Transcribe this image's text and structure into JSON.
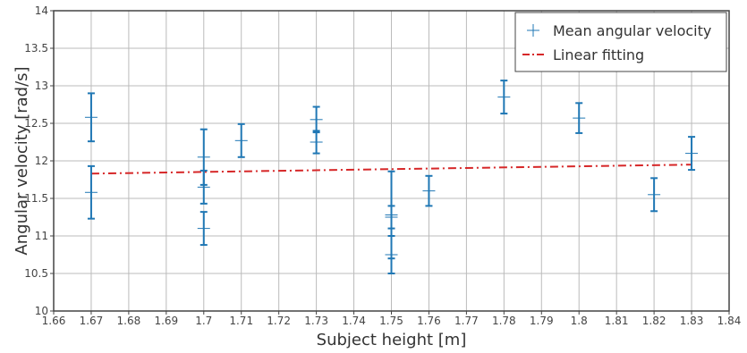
{
  "chart_data": {
    "type": "scatter",
    "xlabel": "Subject height [m]",
    "ylabel": "Angular velocity [rad/s]",
    "xlim": [
      1.66,
      1.84
    ],
    "ylim": [
      10,
      14
    ],
    "xticks": [
      "1.66",
      "1.67",
      "1.68",
      "1.69",
      "1.7",
      "1.71",
      "1.72",
      "1.73",
      "1.74",
      "1.75",
      "1.76",
      "1.77",
      "1.78",
      "1.79",
      "1.8",
      "1.81",
      "1.82",
      "1.83",
      "1.84"
    ],
    "yticks": [
      "10",
      "10.5",
      "11",
      "11.5",
      "12",
      "12.5",
      "13",
      "13.5",
      "14"
    ],
    "grid": true,
    "legend_position": "top-right",
    "series": [
      {
        "name": "Mean angular velocity",
        "kind": "errorbar",
        "color": "#1f77b4",
        "x": [
          1.67,
          1.67,
          1.7,
          1.7,
          1.7,
          1.71,
          1.73,
          1.73,
          1.75,
          1.75,
          1.75,
          1.76,
          1.78,
          1.8,
          1.82,
          1.83
        ],
        "y": [
          12.58,
          11.58,
          12.05,
          11.65,
          11.1,
          12.27,
          12.55,
          12.25,
          11.28,
          11.25,
          10.75,
          11.6,
          12.85,
          12.57,
          11.55,
          12.1
        ],
        "err": [
          0.32,
          0.35,
          0.37,
          0.22,
          0.22,
          0.22,
          0.17,
          0.15,
          0.58,
          0.15,
          0.25,
          0.2,
          0.22,
          0.2,
          0.22,
          0.22
        ]
      },
      {
        "name": "Linear fitting",
        "kind": "line",
        "color": "#d62728",
        "dash": "dashdot",
        "x": [
          1.67,
          1.83
        ],
        "y": [
          11.83,
          11.95
        ]
      }
    ]
  }
}
